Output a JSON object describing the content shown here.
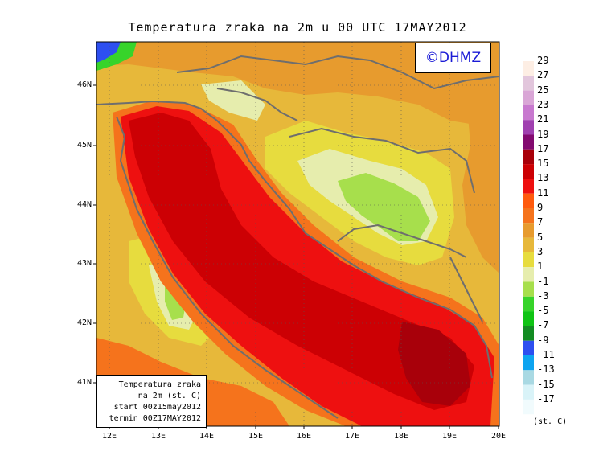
{
  "title": "Temperatura zraka na 2m u 00 UTC 17MAY2012",
  "watermark": "©DHMZ",
  "info_box": {
    "line1": "Temperatura zraka",
    "line2": "na 2m (st. C)",
    "line3": "start 00z15may2012",
    "line4": "termin 00Z17MAY2012"
  },
  "lat_labels": [
    "46N",
    "45N",
    "44N",
    "43N",
    "42N",
    "41N"
  ],
  "lon_labels": [
    "12E",
    "13E",
    "14E",
    "15E",
    "16E",
    "17E",
    "18E",
    "19E",
    "20E"
  ],
  "colorbar": {
    "unit": "(st. C)",
    "levels": [
      {
        "label": "29",
        "color": "#fdeee4"
      },
      {
        "label": "27",
        "color": "#e2c6dc"
      },
      {
        "label": "25",
        "color": "#d9a6d6"
      },
      {
        "label": "23",
        "color": "#c879cf"
      },
      {
        "label": "21",
        "color": "#a040b0"
      },
      {
        "label": "19",
        "color": "#830a70"
      },
      {
        "label": "17",
        "color": "#a8000a"
      },
      {
        "label": "15",
        "color": "#cc0004"
      },
      {
        "label": "13",
        "color": "#ee1010"
      },
      {
        "label": "11",
        "color": "#ff5a0e"
      },
      {
        "label": "9",
        "color": "#f5731c"
      },
      {
        "label": "7",
        "color": "#e79b2e"
      },
      {
        "label": "5",
        "color": "#e7b83a"
      },
      {
        "label": "3",
        "color": "#e7dc3e"
      },
      {
        "label": "1",
        "color": "#e6edad"
      },
      {
        "label": "-1",
        "color": "#a7df4c"
      },
      {
        "label": "-3",
        "color": "#37d42a"
      },
      {
        "label": "-5",
        "color": "#0fc414"
      },
      {
        "label": "-7",
        "color": "#138c22"
      },
      {
        "label": "-9",
        "color": "#2d4ff0"
      },
      {
        "label": "-11",
        "color": "#0da4f0"
      },
      {
        "label": "-13",
        "color": "#a9d9e3"
      },
      {
        "label": "-15",
        "color": "#d9f3f8"
      },
      {
        "label": "-17",
        "color": "#f1fbfd"
      }
    ]
  },
  "fields": {
    "base": "#e7b83a",
    "north": "#e79b2e",
    "sea_warm": "#ee1010",
    "sea_warmer": "#cc0004",
    "sea_hot": "#a8000a",
    "coast": "#f5731c",
    "cold": "#e7dc3e",
    "colder": "#e6edad",
    "coldest": "#a7df4c",
    "alps_cold": "#2d4ff0",
    "alps_green": "#37d42a",
    "borders": "#6e6e6e"
  }
}
